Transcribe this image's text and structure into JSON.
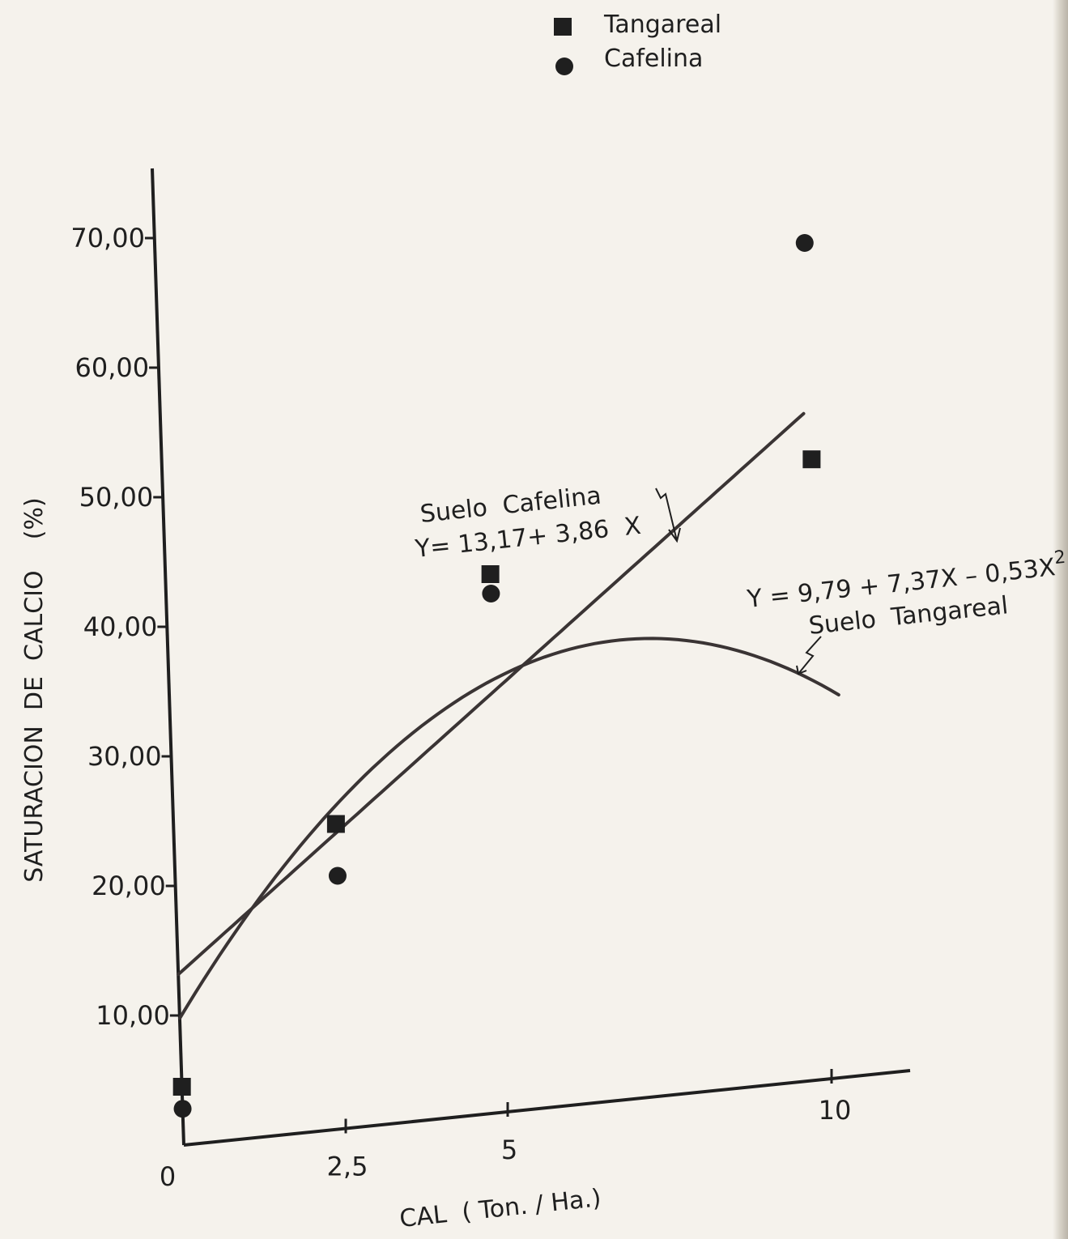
{
  "chart_data": {
    "type": "scatter",
    "xlabel": "CAL  ( Ton. / Ha.)",
    "ylabel": "SATURACION  DE  CALCIO    (%)",
    "x_ticks": [
      {
        "value": 0,
        "label": "0"
      },
      {
        "value": 2.5,
        "label": "2,5"
      },
      {
        "value": 5,
        "label": "5"
      },
      {
        "value": 10,
        "label": "10"
      }
    ],
    "y_ticks": [
      {
        "value": 10,
        "label": "10,00"
      },
      {
        "value": 20,
        "label": "20,00"
      },
      {
        "value": 30,
        "label": "30,00"
      },
      {
        "value": 40,
        "label": "40,00"
      },
      {
        "value": 50,
        "label": "50,00"
      },
      {
        "value": 60,
        "label": "60,00"
      },
      {
        "value": 70,
        "label": "70,00"
      }
    ],
    "xlim": [
      0,
      11.2
    ],
    "ylim": [
      0,
      76
    ],
    "grid": false,
    "legend_position": "top-center",
    "series": [
      {
        "name": "Tangareal",
        "marker": "square",
        "points": [
          [
            0,
            4.5
          ],
          [
            2.5,
            23.5
          ],
          [
            5,
            41.5
          ],
          [
            10,
            47.8
          ]
        ],
        "fit": {
          "kind": "quadratic",
          "coef": [
            9.79,
            7.37,
            -0.53
          ],
          "label": "Y = 9,79 + 7,37X – 0,53X",
          "exponent": "2",
          "soil_label": "Suelo  Tangareal"
        }
      },
      {
        "name": "Cafelina",
        "marker": "circle",
        "points": [
          [
            0,
            2.8
          ],
          [
            2.5,
            19.5
          ],
          [
            5,
            40
          ],
          [
            10,
            64.5
          ]
        ],
        "fit": {
          "kind": "linear",
          "coef": [
            13.17,
            3.86
          ],
          "label": "Y= 13,17+ 3,86  X",
          "soil_label": "Suelo  Cafelina"
        }
      }
    ],
    "colors": {
      "ink": "#1f1f1f",
      "curve": "#3a3434",
      "paper": "#f5f2ec"
    }
  }
}
